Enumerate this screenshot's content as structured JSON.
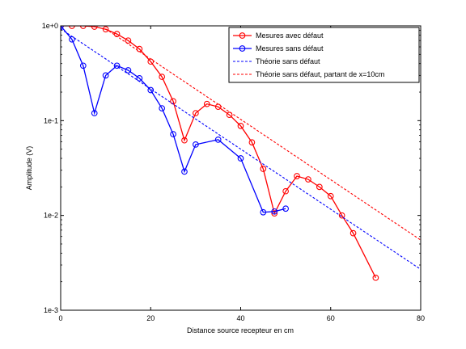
{
  "chart_data": {
    "type": "line",
    "title": "",
    "xlabel": "Distance source recepteur en cm",
    "ylabel": "Amplitude (V)",
    "xlim": [
      0,
      80
    ],
    "ylim": [
      0.001,
      1
    ],
    "yscale": "log",
    "grid": false,
    "legend_position": "top-right",
    "x_ticks": [
      0,
      20,
      40,
      60,
      80
    ],
    "x_tick_labels": [
      "0",
      "20",
      "40",
      "60",
      "80"
    ],
    "y_ticks": [
      0.001,
      0.01,
      0.1,
      1
    ],
    "y_tick_labels": [
      "1e-3",
      "1e-2",
      "1e-1",
      "1e+0"
    ],
    "series": [
      {
        "name": "Mesures avec défaut",
        "color": "#ff0000",
        "style": "solid",
        "marker": "circle",
        "x": [
          0,
          2.5,
          5,
          7.5,
          10,
          12.5,
          15,
          17.5,
          20,
          22.5,
          25,
          27.5,
          30,
          32.5,
          35,
          37.5,
          40,
          42.5,
          45,
          47.5,
          50,
          52.5,
          55,
          57.5,
          60,
          62.5,
          65,
          70
        ],
        "y": [
          1.0,
          1.0,
          1.0,
          0.98,
          0.92,
          0.82,
          0.7,
          0.57,
          0.42,
          0.29,
          0.16,
          0.062,
          0.12,
          0.15,
          0.14,
          0.115,
          0.088,
          0.059,
          0.031,
          0.0105,
          0.018,
          0.026,
          0.024,
          0.02,
          0.016,
          0.01,
          0.0065,
          0.0022
        ]
      },
      {
        "name": "Mesures sans défaut",
        "color": "#0000ff",
        "style": "solid",
        "marker": "circle",
        "x": [
          0,
          2.5,
          5,
          7.5,
          10,
          12.5,
          15,
          17.5,
          20,
          22.5,
          25,
          27.5,
          30,
          35,
          40,
          45,
          47.5,
          50
        ],
        "y": [
          1.0,
          0.72,
          0.38,
          0.12,
          0.3,
          0.38,
          0.34,
          0.28,
          0.21,
          0.135,
          0.072,
          0.029,
          0.056,
          0.063,
          0.04,
          0.0108,
          0.011,
          0.0118
        ]
      },
      {
        "name": "Théorie sans défaut",
        "color": "#0000ff",
        "style": "dashed",
        "marker": "none",
        "x": [
          0,
          80
        ],
        "y": [
          0.93,
          0.0027
        ]
      },
      {
        "name": "Théorie sans défaut, partant de x=10cm",
        "color": "#ff0000",
        "style": "dashed",
        "marker": "none",
        "x": [
          10,
          80
        ],
        "y": [
          0.93,
          0.0055
        ]
      }
    ]
  }
}
